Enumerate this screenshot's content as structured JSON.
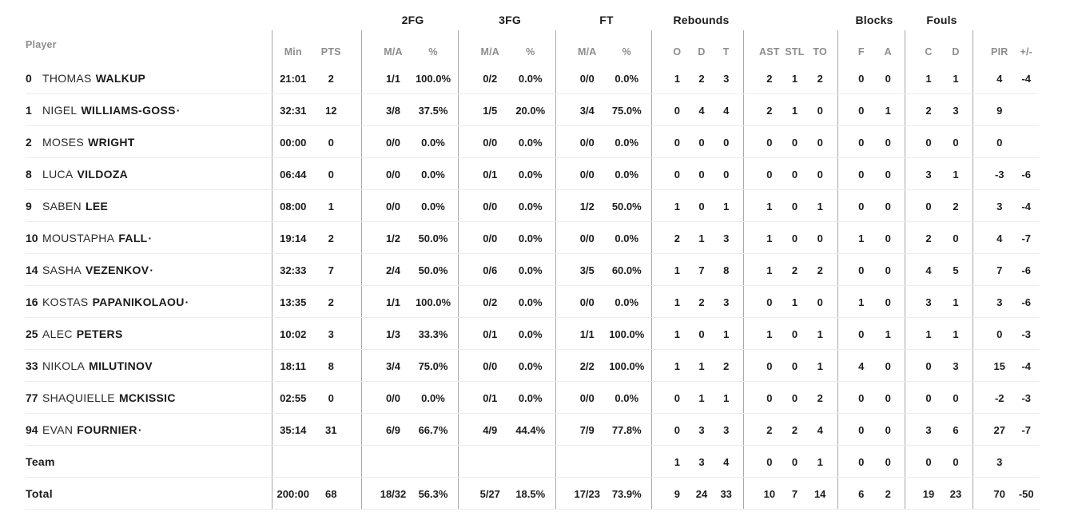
{
  "header": {
    "player": "Player",
    "min": "Min",
    "pts": "PTS",
    "groups": {
      "fg2": "2FG",
      "fg3": "3FG",
      "ft": "FT",
      "rebounds": "Rebounds",
      "blocks": "Blocks",
      "fouls": "Fouls"
    },
    "ma": "M/A",
    "pct": "%",
    "o": "O",
    "d": "D",
    "t": "T",
    "ast": "AST",
    "stl": "STL",
    "to": "TO",
    "bf": "F",
    "ba": "A",
    "fc": "C",
    "fd": "D",
    "pir": "PIR",
    "pm": "+/-"
  },
  "colors": {
    "text": "#1b1b1b",
    "muted": "#8d8d8d",
    "vline": "#a8a8a8",
    "hline": "#ececec",
    "background": "#ffffff"
  },
  "rows": [
    {
      "num": "0",
      "first": "THOMAS",
      "last": "WALKUP",
      "dot": "",
      "min": "21:01",
      "pts": "2",
      "fg2ma": "1/1",
      "fg2pct": "100.0%",
      "fg3ma": "0/2",
      "fg3pct": "0.0%",
      "ftma": "0/0",
      "ftpct": "0.0%",
      "ro": "1",
      "rd": "2",
      "rt": "3",
      "ast": "2",
      "stl": "1",
      "to": "2",
      "bf": "0",
      "ba": "0",
      "fc": "1",
      "fd": "1",
      "pir": "4",
      "pm": "-4"
    },
    {
      "num": "1",
      "first": "NIGEL",
      "last": "WILLIAMS-GOSS",
      "dot": "·",
      "min": "32:31",
      "pts": "12",
      "fg2ma": "3/8",
      "fg2pct": "37.5%",
      "fg3ma": "1/5",
      "fg3pct": "20.0%",
      "ftma": "3/4",
      "ftpct": "75.0%",
      "ro": "0",
      "rd": "4",
      "rt": "4",
      "ast": "2",
      "stl": "1",
      "to": "0",
      "bf": "0",
      "ba": "1",
      "fc": "2",
      "fd": "3",
      "pir": "9",
      "pm": ""
    },
    {
      "num": "2",
      "first": "MOSES",
      "last": "WRIGHT",
      "dot": "",
      "min": "00:00",
      "pts": "0",
      "fg2ma": "0/0",
      "fg2pct": "0.0%",
      "fg3ma": "0/0",
      "fg3pct": "0.0%",
      "ftma": "0/0",
      "ftpct": "0.0%",
      "ro": "0",
      "rd": "0",
      "rt": "0",
      "ast": "0",
      "stl": "0",
      "to": "0",
      "bf": "0",
      "ba": "0",
      "fc": "0",
      "fd": "0",
      "pir": "0",
      "pm": ""
    },
    {
      "num": "8",
      "first": "LUCA",
      "last": "VILDOZA",
      "dot": "",
      "min": "06:44",
      "pts": "0",
      "fg2ma": "0/0",
      "fg2pct": "0.0%",
      "fg3ma": "0/1",
      "fg3pct": "0.0%",
      "ftma": "0/0",
      "ftpct": "0.0%",
      "ro": "0",
      "rd": "0",
      "rt": "0",
      "ast": "0",
      "stl": "0",
      "to": "0",
      "bf": "0",
      "ba": "0",
      "fc": "3",
      "fd": "1",
      "pir": "-3",
      "pm": "-6"
    },
    {
      "num": "9",
      "first": "SABEN",
      "last": "LEE",
      "dot": "",
      "min": "08:00",
      "pts": "1",
      "fg2ma": "0/0",
      "fg2pct": "0.0%",
      "fg3ma": "0/0",
      "fg3pct": "0.0%",
      "ftma": "1/2",
      "ftpct": "50.0%",
      "ro": "1",
      "rd": "0",
      "rt": "1",
      "ast": "1",
      "stl": "0",
      "to": "1",
      "bf": "0",
      "ba": "0",
      "fc": "0",
      "fd": "2",
      "pir": "3",
      "pm": "-4"
    },
    {
      "num": "10",
      "first": "MOUSTAPHA",
      "last": "FALL",
      "dot": "·",
      "min": "19:14",
      "pts": "2",
      "fg2ma": "1/2",
      "fg2pct": "50.0%",
      "fg3ma": "0/0",
      "fg3pct": "0.0%",
      "ftma": "0/0",
      "ftpct": "0.0%",
      "ro": "2",
      "rd": "1",
      "rt": "3",
      "ast": "1",
      "stl": "0",
      "to": "0",
      "bf": "1",
      "ba": "0",
      "fc": "2",
      "fd": "0",
      "pir": "4",
      "pm": "-7"
    },
    {
      "num": "14",
      "first": "SASHA",
      "last": "VEZENKOV",
      "dot": "·",
      "min": "32:33",
      "pts": "7",
      "fg2ma": "2/4",
      "fg2pct": "50.0%",
      "fg3ma": "0/6",
      "fg3pct": "0.0%",
      "ftma": "3/5",
      "ftpct": "60.0%",
      "ro": "1",
      "rd": "7",
      "rt": "8",
      "ast": "1",
      "stl": "2",
      "to": "2",
      "bf": "0",
      "ba": "0",
      "fc": "4",
      "fd": "5",
      "pir": "7",
      "pm": "-6"
    },
    {
      "num": "16",
      "first": "KOSTAS",
      "last": "PAPANIKOLAOU",
      "dot": "·",
      "min": "13:35",
      "pts": "2",
      "fg2ma": "1/1",
      "fg2pct": "100.0%",
      "fg3ma": "0/2",
      "fg3pct": "0.0%",
      "ftma": "0/0",
      "ftpct": "0.0%",
      "ro": "1",
      "rd": "2",
      "rt": "3",
      "ast": "0",
      "stl": "1",
      "to": "0",
      "bf": "1",
      "ba": "0",
      "fc": "3",
      "fd": "1",
      "pir": "3",
      "pm": "-6"
    },
    {
      "num": "25",
      "first": "ALEC",
      "last": "PETERS",
      "dot": "",
      "min": "10:02",
      "pts": "3",
      "fg2ma": "1/3",
      "fg2pct": "33.3%",
      "fg3ma": "0/1",
      "fg3pct": "0.0%",
      "ftma": "1/1",
      "ftpct": "100.0%",
      "ro": "1",
      "rd": "0",
      "rt": "1",
      "ast": "1",
      "stl": "0",
      "to": "1",
      "bf": "0",
      "ba": "1",
      "fc": "1",
      "fd": "1",
      "pir": "0",
      "pm": "-3"
    },
    {
      "num": "33",
      "first": "NIKOLA",
      "last": "MILUTINOV",
      "dot": "",
      "min": "18:11",
      "pts": "8",
      "fg2ma": "3/4",
      "fg2pct": "75.0%",
      "fg3ma": "0/0",
      "fg3pct": "0.0%",
      "ftma": "2/2",
      "ftpct": "100.0%",
      "ro": "1",
      "rd": "1",
      "rt": "2",
      "ast": "0",
      "stl": "0",
      "to": "1",
      "bf": "4",
      "ba": "0",
      "fc": "0",
      "fd": "3",
      "pir": "15",
      "pm": "-4"
    },
    {
      "num": "77",
      "first": "SHAQUIELLE",
      "last": "MCKISSIC",
      "dot": "",
      "min": "02:55",
      "pts": "0",
      "fg2ma": "0/0",
      "fg2pct": "0.0%",
      "fg3ma": "0/1",
      "fg3pct": "0.0%",
      "ftma": "0/0",
      "ftpct": "0.0%",
      "ro": "0",
      "rd": "1",
      "rt": "1",
      "ast": "0",
      "stl": "0",
      "to": "2",
      "bf": "0",
      "ba": "0",
      "fc": "0",
      "fd": "0",
      "pir": "-2",
      "pm": "-3"
    },
    {
      "num": "94",
      "first": "EVAN",
      "last": "FOURNIER",
      "dot": "·",
      "min": "35:14",
      "pts": "31",
      "fg2ma": "6/9",
      "fg2pct": "66.7%",
      "fg3ma": "4/9",
      "fg3pct": "44.4%",
      "ftma": "7/9",
      "ftpct": "77.8%",
      "ro": "0",
      "rd": "3",
      "rt": "3",
      "ast": "2",
      "stl": "2",
      "to": "4",
      "bf": "0",
      "ba": "0",
      "fc": "3",
      "fd": "6",
      "pir": "27",
      "pm": "-7"
    },
    {
      "num": "",
      "first": "",
      "last": "Team",
      "dot": "",
      "min": "",
      "pts": "",
      "fg2ma": "",
      "fg2pct": "",
      "fg3ma": "",
      "fg3pct": "",
      "ftma": "",
      "ftpct": "",
      "ro": "1",
      "rd": "3",
      "rt": "4",
      "ast": "0",
      "stl": "0",
      "to": "1",
      "bf": "0",
      "ba": "0",
      "fc": "0",
      "fd": "0",
      "pir": "3",
      "pm": ""
    },
    {
      "num": "",
      "first": "",
      "last": "Total",
      "dot": "",
      "min": "200:00",
      "pts": "68",
      "fg2ma": "18/32",
      "fg2pct": "56.3%",
      "fg3ma": "5/27",
      "fg3pct": "18.5%",
      "ftma": "17/23",
      "ftpct": "73.9%",
      "ro": "9",
      "rd": "24",
      "rt": "33",
      "ast": "10",
      "stl": "7",
      "to": "14",
      "bf": "6",
      "ba": "2",
      "fc": "19",
      "fd": "23",
      "pir": "70",
      "pm": "-50"
    }
  ]
}
